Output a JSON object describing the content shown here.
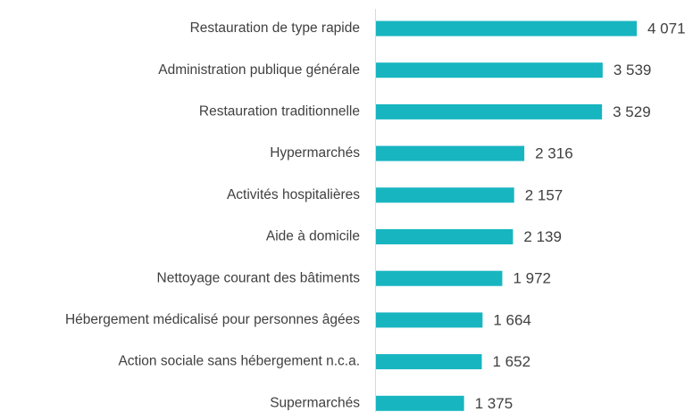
{
  "chart_data": {
    "type": "bar",
    "orientation": "horizontal",
    "categories": [
      "Restauration de type rapide",
      "Administration publique générale",
      "Restauration traditionnelle",
      "Hypermarchés",
      "Activités hospitalières",
      "Aide à domicile",
      "Nettoyage courant des bâtiments",
      "Hébergement médicalisé pour personnes âgées",
      "Action sociale sans hébergement n.c.a.",
      "Supermarchés"
    ],
    "values": [
      4071,
      3539,
      3529,
      2316,
      2157,
      2139,
      1972,
      1664,
      1652,
      1375
    ],
    "value_labels": [
      "4 071",
      "3 539",
      "3 529",
      "2 316",
      "2 157",
      "2 139",
      "1 972",
      "1 664",
      "1 652",
      "1 375"
    ],
    "color": "#17b5c0"
  }
}
